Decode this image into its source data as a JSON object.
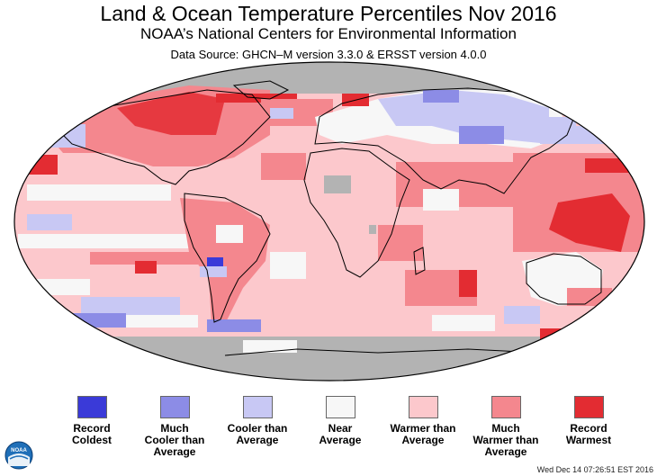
{
  "header": {
    "title": "Land & Ocean Temperature Percentiles Nov 2016",
    "subtitle": "NOAA’s National Centers for Environmental Information",
    "source": "Data Source: GHCN–M version 3.3.0 & ERSST version 4.0.0"
  },
  "colors": {
    "record_coldest": "#3a3ad8",
    "much_cooler": "#8c8ce6",
    "cooler": "#c8c8f4",
    "near": "#f7f7f7",
    "warmer": "#fcc8cc",
    "much_warmer": "#f4878e",
    "record_warmest": "#e32c32",
    "no_data": "#b3b3b3"
  },
  "legend": [
    {
      "label": "Record\nColdest",
      "color": "#3a3ad8"
    },
    {
      "label": "Much\nCooler than\nAverage",
      "color": "#8c8ce6"
    },
    {
      "label": "Cooler than\nAverage",
      "color": "#c8c8f4"
    },
    {
      "label": "Near\nAverage",
      "color": "#f7f7f7"
    },
    {
      "label": "Warmer than\nAverage",
      "color": "#fcc8cc"
    },
    {
      "label": "Much\nWarmer than\nAverage",
      "color": "#f4878e"
    },
    {
      "label": "Record\nWarmest",
      "color": "#e32c32"
    }
  ],
  "logo": {
    "text": "NOAA",
    "icon": "noaa-logo-icon"
  },
  "timestamp": "Wed Dec 14 07:26:51 EST 2016"
}
